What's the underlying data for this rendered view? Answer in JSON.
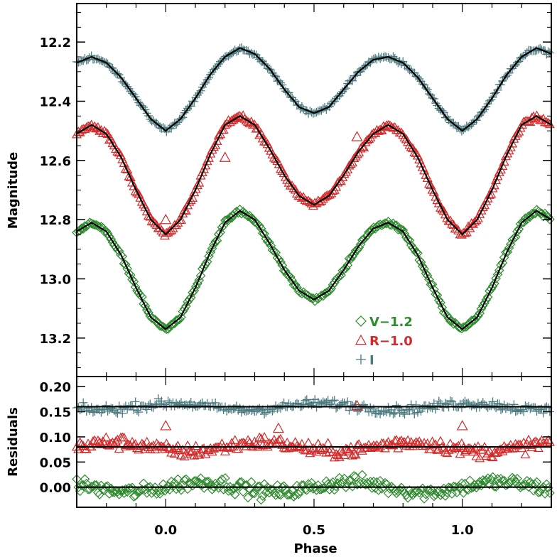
{
  "chart_data": [
    {
      "type": "scatter",
      "panel": "top",
      "ylabel": "Magnitude",
      "xlim": [
        -0.3,
        1.3
      ],
      "ylim": [
        13.33,
        12.07
      ],
      "y_inverted": true,
      "yticks": [
        "12.2",
        "12.4",
        "12.6",
        "12.8",
        "13.0",
        "13.2"
      ],
      "yticks_values": [
        12.2,
        12.4,
        12.6,
        12.8,
        13.0,
        13.2
      ],
      "legend_placement": "lower-center-right",
      "series": [
        {
          "name": "V−1.2",
          "marker": "diamond",
          "color": "#2e8b2e",
          "model_x": [
            -0.3,
            -0.25,
            -0.2,
            -0.15,
            -0.1,
            -0.05,
            0.0,
            0.05,
            0.1,
            0.15,
            0.2,
            0.25,
            0.3,
            0.35,
            0.4,
            0.45,
            0.5,
            0.55,
            0.6,
            0.65,
            0.7,
            0.75,
            0.8,
            0.85,
            0.9,
            0.95,
            1.0,
            1.05,
            1.1,
            1.15,
            1.2,
            1.25,
            1.3
          ],
          "model_y": [
            12.84,
            12.81,
            12.84,
            12.92,
            13.03,
            13.13,
            13.17,
            13.13,
            13.03,
            12.91,
            12.81,
            12.77,
            12.8,
            12.88,
            12.97,
            13.04,
            13.07,
            13.04,
            12.97,
            12.89,
            12.83,
            12.81,
            12.84,
            12.92,
            13.03,
            13.13,
            13.17,
            13.13,
            13.03,
            12.91,
            12.81,
            12.77,
            12.8
          ]
        },
        {
          "name": "R−1.0",
          "marker": "triangle",
          "color": "#d42a2a",
          "model_x": [
            -0.3,
            -0.25,
            -0.2,
            -0.15,
            -0.1,
            -0.05,
            0.0,
            0.05,
            0.1,
            0.15,
            0.2,
            0.25,
            0.3,
            0.35,
            0.4,
            0.45,
            0.5,
            0.55,
            0.6,
            0.65,
            0.7,
            0.75,
            0.8,
            0.85,
            0.9,
            0.95,
            1.0,
            1.05,
            1.1,
            1.15,
            1.2,
            1.25,
            1.3
          ],
          "model_y": [
            12.51,
            12.48,
            12.51,
            12.59,
            12.7,
            12.8,
            12.85,
            12.8,
            12.7,
            12.58,
            12.48,
            12.45,
            12.48,
            12.56,
            12.65,
            12.72,
            12.75,
            12.72,
            12.65,
            12.57,
            12.51,
            12.48,
            12.51,
            12.59,
            12.7,
            12.8,
            12.85,
            12.8,
            12.7,
            12.58,
            12.48,
            12.45,
            12.48
          ]
        },
        {
          "name": "I",
          "marker": "plus",
          "color": "#4a7a80",
          "model_x": [
            -0.3,
            -0.25,
            -0.2,
            -0.15,
            -0.1,
            -0.05,
            0.0,
            0.05,
            0.1,
            0.15,
            0.2,
            0.25,
            0.3,
            0.35,
            0.4,
            0.45,
            0.5,
            0.55,
            0.6,
            0.65,
            0.7,
            0.75,
            0.8,
            0.85,
            0.9,
            0.95,
            1.0,
            1.05,
            1.1,
            1.15,
            1.2,
            1.25,
            1.3
          ],
          "model_y": [
            12.27,
            12.25,
            12.27,
            12.32,
            12.39,
            12.46,
            12.5,
            12.46,
            12.39,
            12.31,
            12.25,
            12.22,
            12.24,
            12.29,
            12.36,
            12.42,
            12.44,
            12.42,
            12.36,
            12.3,
            12.26,
            12.25,
            12.27,
            12.32,
            12.39,
            12.46,
            12.5,
            12.46,
            12.39,
            12.31,
            12.25,
            12.22,
            12.24
          ]
        }
      ],
      "outliers": [
        {
          "series": "R−1.0",
          "x": 0.2,
          "y": 12.59
        },
        {
          "series": "R−1.0",
          "x": 0.645,
          "y": 12.52
        },
        {
          "series": "R−1.0",
          "x": 0.0,
          "y": 12.8
        }
      ]
    },
    {
      "type": "scatter",
      "panel": "bottom",
      "ylabel": "Residuals",
      "xlabel": "Phase",
      "xlim": [
        -0.3,
        1.3
      ],
      "ylim": [
        -0.04,
        0.22
      ],
      "xticks": [
        "0.0",
        "0.5",
        "1.0"
      ],
      "xticks_values": [
        0.0,
        0.5,
        1.0
      ],
      "yticks": [
        "0.00",
        "0.05",
        "0.10",
        "0.15",
        "0.20"
      ],
      "yticks_values": [
        0.0,
        0.05,
        0.1,
        0.15,
        0.2
      ],
      "reference_lines": [
        0.0,
        0.08,
        0.16
      ],
      "series": [
        {
          "name": "V−1.2",
          "marker": "diamond",
          "color": "#2e8b2e",
          "baseline": 0.0,
          "scatter": 0.02
        },
        {
          "name": "R−1.0",
          "marker": "triangle",
          "color": "#d42a2a",
          "baseline": 0.08,
          "scatter": 0.018
        },
        {
          "name": "I",
          "marker": "plus",
          "color": "#4a7a80",
          "baseline": 0.16,
          "scatter": 0.013
        }
      ],
      "outliers": [
        {
          "series": "R−1.0",
          "x": 0.0,
          "y": 0.122
        },
        {
          "series": "R−1.0",
          "x": 0.38,
          "y": 0.117
        },
        {
          "series": "R−1.0",
          "x": 1.0,
          "y": 0.122
        },
        {
          "series": "R−1.0",
          "x": 0.645,
          "y": 0.162
        }
      ]
    }
  ],
  "legend": [
    {
      "label": "V−1.2",
      "marker": "diamond",
      "color": "#2e8b2e"
    },
    {
      "label": "R−1.0",
      "marker": "triangle",
      "color": "#d42a2a"
    },
    {
      "label": "I",
      "marker": "plus",
      "color": "#4a7a80"
    }
  ],
  "colors": {
    "axis": "#000000",
    "model_line": "#000000"
  }
}
